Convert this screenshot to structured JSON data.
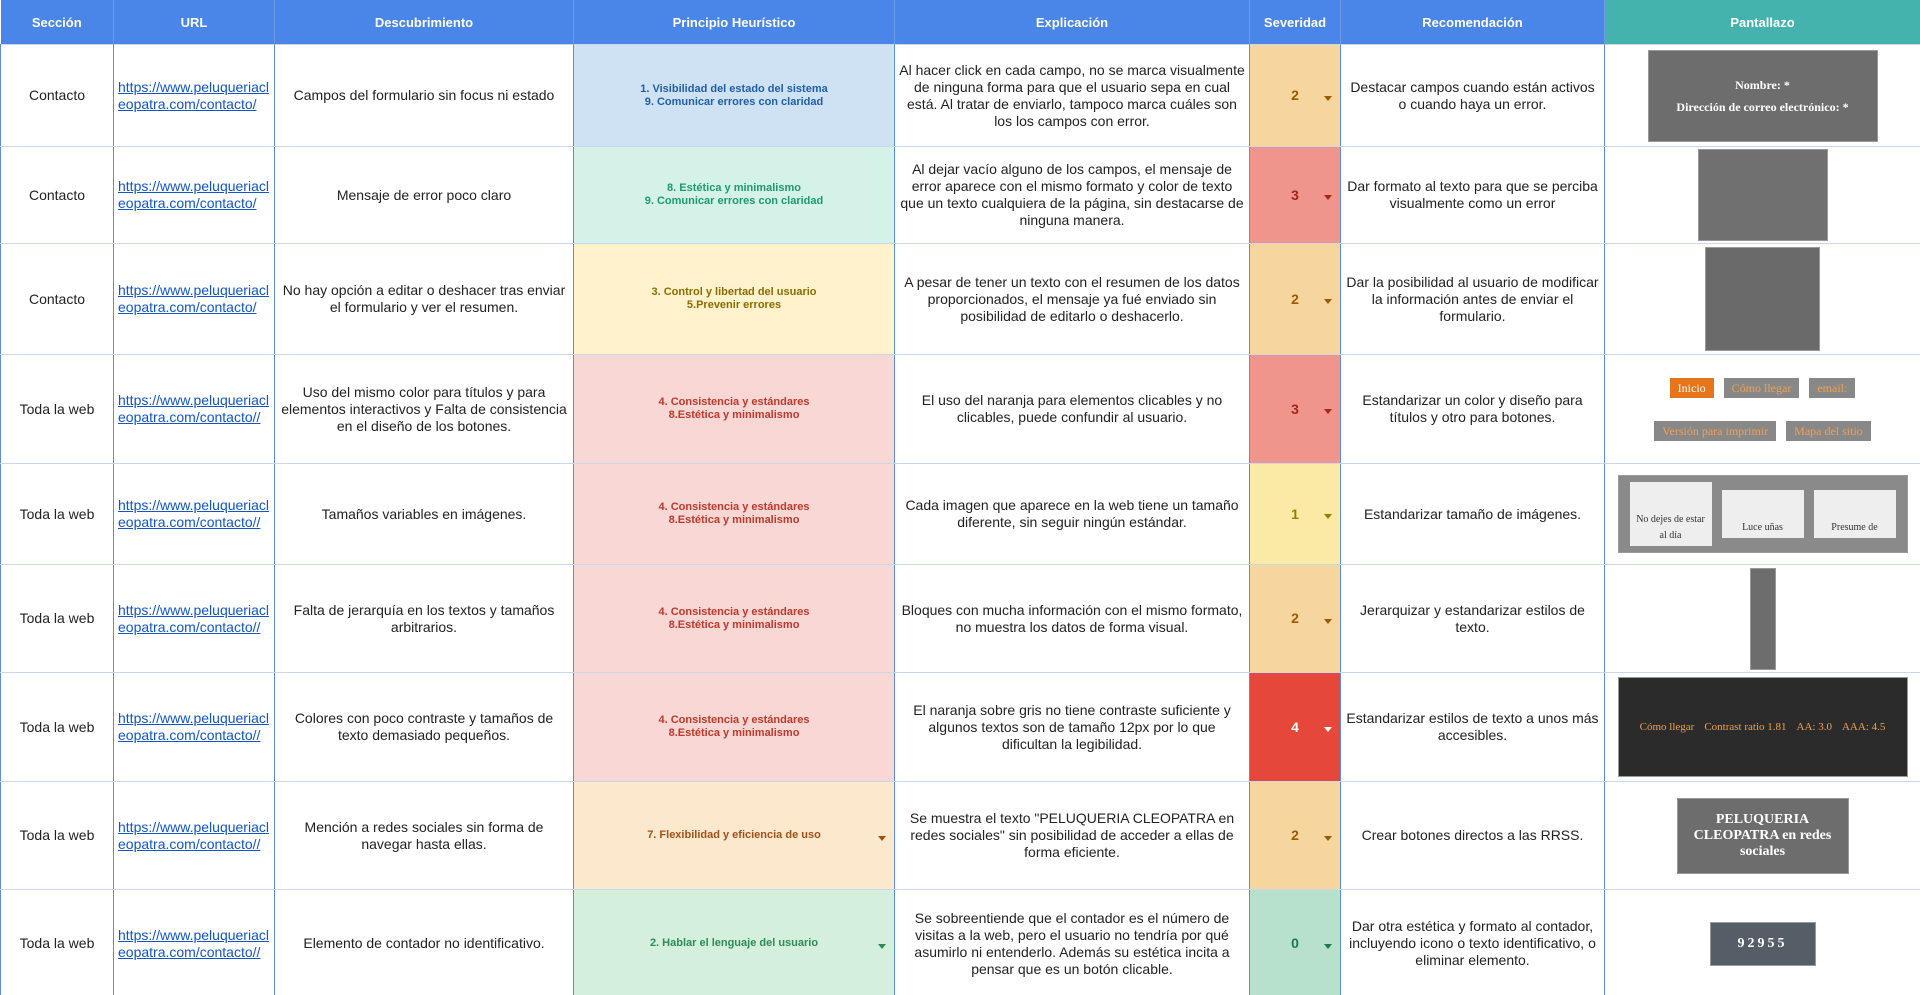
{
  "header": [
    "Sección",
    "URL",
    "Descubrimiento",
    "Principio Heurístico",
    "Explicación",
    "Severidad",
    "Recomendación",
    "Pantallazo"
  ],
  "rows": [
    {
      "section": "Contacto",
      "url": "https://www.peluqueriacleopatra.com/contacto/",
      "finding": "Campos del formulario sin focus ni estado",
      "principles": [
        "1. Visibilidad del estado del sistema",
        "9. Comunicar errores con claridad"
      ],
      "explanation": "Al hacer click en cada campo, no se marca visualmente de ninguna forma para que el usuario sepa en cual está. Al tratar de enviarlo, tampoco marca cuáles son los los campos con error.",
      "severity": 2,
      "recommendation": "Destacar campos cuando están activos o cuando haya un error.",
      "screenshot_texts": [
        "Nombre: *",
        "Dirección de correo electrónico: *"
      ]
    },
    {
      "section": "Contacto",
      "url": "https://www.peluqueriacleopatra.com/contacto/",
      "finding": "Mensaje de error poco claro",
      "principles": [
        "8. Estética y minimalismo",
        "9. Comunicar errores con claridad"
      ],
      "explanation": "Al dejar vacío alguno de los campos, el mensaje de error aparece con el mismo formato y color de texto que un texto cualquiera de la página, sin destacarse de ninguna manera.",
      "severity": 3,
      "recommendation": "Dar formato al texto para que se perciba visualmente como un error"
    },
    {
      "section": "Contacto",
      "url": "https://www.peluqueriacleopatra.com/contacto/",
      "finding": "No hay opción a editar o deshacer tras enviar el formulario y ver el resumen.",
      "principles": [
        "3. Control y libertad del usuario",
        "5.Prevenir errores"
      ],
      "explanation": "A pesar de tener un texto con el resumen de los datos proporcionados, el mensaje ya fué enviado sin posibilidad de editarlo o deshacerlo.",
      "severity": 2,
      "recommendation": "Dar la posibilidad al usuario de modificar la información antes de enviar el formulario."
    },
    {
      "section": "Toda la web",
      "url": "https://www.peluqueriacleopatra.com/contacto//",
      "finding": "Uso del mismo color para títulos y para elementos interactivos y Falta de consistencia en el diseño de los botones.",
      "principles": [
        "4. Consistencia y estándares",
        "8.Estética y minimalismo"
      ],
      "explanation": "El uso del naranja para elementos clicables y no clicables, puede confundir al usuario.",
      "severity": 3,
      "recommendation": "Estandarizar un color y diseño para títulos y otro para botones.",
      "screenshot_texts": [
        "Inicio",
        "Cómo llegar",
        "email:",
        "Versión para imprimir",
        "Mapa del sitio"
      ]
    },
    {
      "section": "Toda la web",
      "url": "https://www.peluqueriacleopatra.com/contacto//",
      "finding": "Tamaños variables en imágenes.",
      "principles": [
        "4. Consistencia y estándares",
        "8.Estética y minimalismo"
      ],
      "explanation": "Cada imagen que aparece en la web tiene un tamaño diferente, sin seguir ningún estándar.",
      "severity": 1,
      "recommendation": "Estandarizar tamaño de imágenes.",
      "screenshot_texts": [
        "No dejes de estar al día",
        "Luce uñas",
        "Presume de"
      ]
    },
    {
      "section": "Toda la web",
      "url": "https://www.peluqueriacleopatra.com/contacto//",
      "finding": "Falta de jerarquía en los textos y tamaños arbitrarios.",
      "principles": [
        "4. Consistencia y estándares",
        "8.Estética y minimalismo"
      ],
      "explanation": "Bloques con mucha información con el mismo formato, no muestra los datos de forma visual.",
      "severity": 2,
      "recommendation": "Jerarquizar y estandarizar estilos de texto."
    },
    {
      "section": "Toda la web",
      "url": "https://www.peluqueriacleopatra.com/contacto//",
      "finding": "Colores con poco contraste y tamaños de texto demasiado pequeños.",
      "principles": [
        "4. Consistencia y estándares",
        "8.Estética y minimalismo"
      ],
      "explanation": "El naranja sobre gris no tiene contraste suficiente y algunos textos son de tamaño 12px por lo que dificultan la legibilidad.",
      "severity": 4,
      "recommendation": "Estandarizar estilos de texto a unos más accesibles.",
      "screenshot_texts": [
        "Cómo llegar",
        "Contrast ratio 1.81",
        "AA: 3.0",
        "AAA: 4.5"
      ]
    },
    {
      "section": "Toda la web",
      "url": "https://www.peluqueriacleopatra.com/contacto//",
      "finding": "Mención a redes sociales sin forma de navegar hasta ellas.",
      "principles": [
        "7. Flexibilidad y eficiencia de uso"
      ],
      "explanation": "Se muestra el texto \"PELUQUERIA CLEOPATRA en redes sociales\" sin posibilidad de acceder a ellas de forma eficiente.",
      "severity": 2,
      "recommendation": "Crear botones directos a las RRSS.",
      "screenshot_texts": [
        "PELUQUERIA CLEOPATRA en redes sociales"
      ]
    },
    {
      "section": "Toda la web",
      "url": "https://www.peluqueriacleopatra.com/contacto//",
      "finding": "Elemento de contador no identificativo.",
      "principles": [
        "2. Hablar el lenguaje del usuario"
      ],
      "explanation": "Se sobreentiende que el contador es el número de visitas a la web, pero el usuario no tendría por qué asumirlo ni entenderlo. Además su estética incita a pensar que es un botón clicable.",
      "severity": 0,
      "recommendation": "Dar otra estética y formato al contador, incluyendo icono o texto identificativo, o eliminar elemento.",
      "screenshot_texts": [
        "92955"
      ]
    }
  ]
}
